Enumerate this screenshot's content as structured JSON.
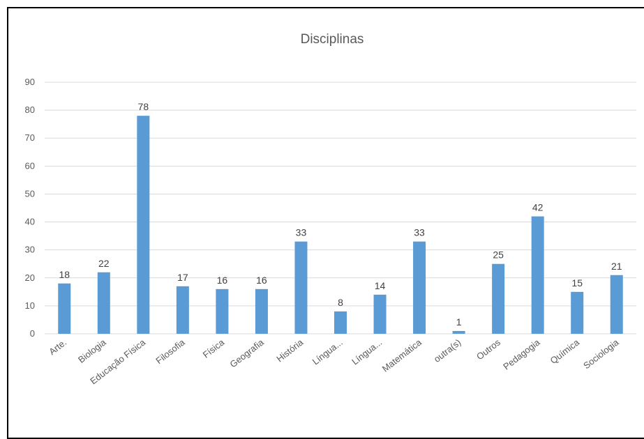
{
  "chart_data": {
    "type": "bar",
    "title": "Disciplinas",
    "xlabel": "",
    "ylabel": "",
    "categories": [
      "Arte.",
      "Biologia",
      "Educação Física",
      "Filosofia",
      "Física",
      "Geografia",
      "História",
      "Língua...",
      "Língua...",
      "Matemática",
      "outra(s)",
      "Outros",
      "Pedagogia",
      "Química",
      "Sociologia"
    ],
    "values": [
      18,
      22,
      78,
      17,
      16,
      16,
      33,
      8,
      14,
      33,
      1,
      25,
      42,
      15,
      21
    ],
    "ylim": [
      0,
      90
    ],
    "yticks": [
      0,
      10,
      20,
      30,
      40,
      50,
      60,
      70,
      80,
      90
    ],
    "grid": true,
    "legend": "none",
    "bar_color": "#5b9bd5",
    "grid_color": "#d9d9d9"
  }
}
